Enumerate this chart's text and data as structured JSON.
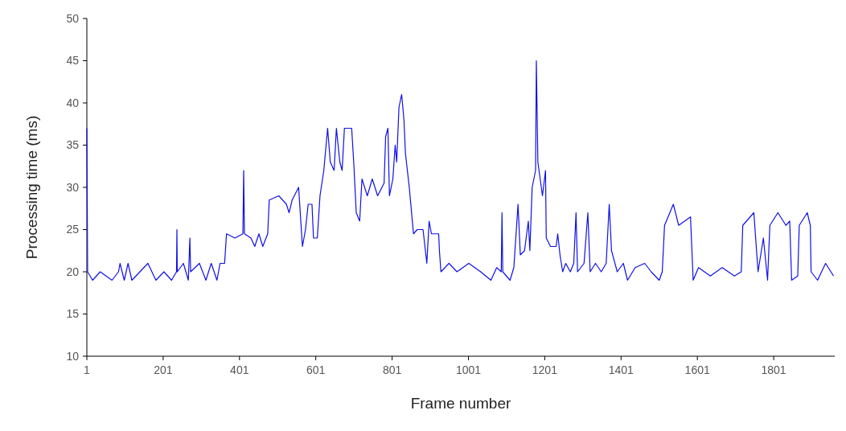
{
  "chart_data": {
    "type": "line",
    "xlabel": "Frame number",
    "ylabel": "Processing time (ms)",
    "xlim": [
      1,
      1961
    ],
    "ylim": [
      10,
      50
    ],
    "xticks": [
      1,
      201,
      401,
      601,
      801,
      1001,
      1201,
      1401,
      1601,
      1801
    ],
    "yticks": [
      10,
      15,
      20,
      25,
      30,
      35,
      40,
      45,
      50
    ],
    "marker": "none",
    "line_style": "solid",
    "series": [
      {
        "color": "#1010e8",
        "x": [
          1,
          3,
          16,
          36,
          67,
          84,
          88,
          99,
          109,
          119,
          140,
          161,
          182,
          203,
          223,
          236,
          237,
          238,
          254,
          267,
          271,
          273,
          296,
          313,
          327,
          342,
          350,
          362,
          367,
          389,
          410,
          412,
          414,
          431,
          441,
          452,
          462,
          475,
          479,
          504,
          524,
          531,
          539,
          556,
          566,
          574,
          581,
          591,
          595,
          605,
          612,
          622,
          632,
          639,
          649,
          655,
          664,
          670,
          676,
          695,
          701,
          707,
          716,
          722,
          736,
          749,
          763,
          780,
          784,
          790,
          794,
          803,
          809,
          813,
          819,
          826,
          832,
          836,
          846,
          857,
          867,
          882,
          892,
          898,
          904,
          923,
          925,
          929,
          950,
          971,
          1002,
          1033,
          1060,
          1075,
          1087,
          1089,
          1091,
          1110,
          1120,
          1131,
          1137,
          1148,
          1158,
          1162,
          1168,
          1177,
          1179,
          1183,
          1189,
          1195,
          1203,
          1205,
          1216,
          1231,
          1235,
          1241,
          1248,
          1256,
          1268,
          1277,
          1283,
          1287,
          1304,
          1314,
          1320,
          1334,
          1349,
          1362,
          1370,
          1376,
          1391,
          1407,
          1418,
          1438,
          1463,
          1480,
          1501,
          1509,
          1515,
          1538,
          1552,
          1583,
          1590,
          1604,
          1635,
          1666,
          1698,
          1716,
          1720,
          1749,
          1760,
          1774,
          1785,
          1791,
          1812,
          1833,
          1843,
          1848,
          1864,
          1868,
          1889,
          1897,
          1899,
          1916,
          1937,
          1958
        ],
        "values": [
          37,
          20,
          19,
          20,
          19,
          20,
          21,
          19,
          21,
          19,
          20,
          21,
          19,
          20,
          19,
          20,
          25,
          20,
          21,
          19,
          24,
          20,
          21,
          19,
          21,
          19,
          21,
          21,
          24.5,
          24,
          24.5,
          32,
          24.5,
          24,
          23,
          24.5,
          23,
          24.5,
          28.5,
          29,
          28,
          27,
          28.5,
          30,
          23,
          25,
          28,
          28,
          24,
          24,
          29,
          32,
          37,
          33,
          32,
          37,
          33,
          32,
          37,
          37,
          32.5,
          27,
          26,
          31,
          29,
          31,
          29,
          30.5,
          36,
          37,
          29,
          31,
          35,
          33,
          39.5,
          41,
          38,
          34,
          30,
          24.5,
          25,
          25,
          21,
          26,
          24.5,
          24.5,
          22.5,
          20,
          21,
          20,
          21,
          20,
          19,
          20.5,
          20,
          27,
          20,
          19,
          20.5,
          28,
          22,
          22.5,
          26,
          22.5,
          30,
          32,
          45,
          33,
          31,
          29,
          32,
          24,
          23,
          23,
          24.5,
          22,
          20,
          21,
          20,
          21,
          27,
          20,
          21,
          27,
          20,
          21,
          20,
          21,
          28,
          22.5,
          20,
          21,
          19,
          20.5,
          21,
          20,
          19,
          20,
          25.5,
          28,
          25.5,
          26.5,
          19,
          20.5,
          19.5,
          20.5,
          19.5,
          20,
          25.5,
          27,
          20,
          24,
          19,
          25.5,
          27,
          25.5,
          26,
          19,
          19.5,
          25.5,
          27,
          25.5,
          20,
          19,
          21,
          19.5
        ]
      }
    ]
  }
}
